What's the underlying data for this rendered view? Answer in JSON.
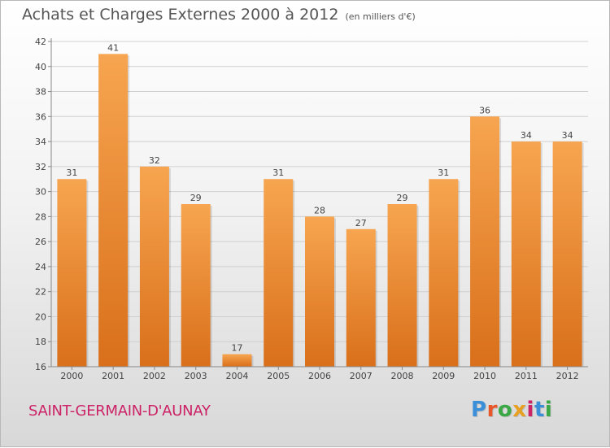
{
  "title": "Achats et Charges Externes 2000 à 2012",
  "subtitle": "(en milliers d'€)",
  "commune": "SAINT-GERMAIN-D'AUNAY",
  "logo": {
    "text": "Proxiti",
    "colors": [
      "#3a8fd8",
      "#e8562a",
      "#3aa844",
      "#e8a020",
      "#cc2266",
      "#3a8fd8",
      "#3aa844"
    ]
  },
  "colors": {
    "bar_top": "#f7a550",
    "bar_bottom": "#d96f1a",
    "grid": "#cfcfcf",
    "axis": "#888888",
    "label": "#444444",
    "title": "#555555",
    "commune": "#cc2266"
  },
  "chart_data": {
    "type": "bar",
    "title": "Achats et Charges Externes 2000 à 2012",
    "subtitle": "(en milliers d'€)",
    "categories": [
      "2000",
      "2001",
      "2002",
      "2003",
      "2004",
      "2005",
      "2006",
      "2007",
      "2008",
      "2009",
      "2010",
      "2011",
      "2012"
    ],
    "values": [
      31,
      41,
      32,
      29,
      17,
      31,
      28,
      27,
      29,
      31,
      36,
      34,
      34
    ],
    "ylim": [
      16,
      42
    ],
    "yticks": [
      16,
      18,
      20,
      22,
      24,
      26,
      28,
      30,
      32,
      34,
      36,
      38,
      40,
      42
    ],
    "grid": true,
    "legend": "none"
  }
}
